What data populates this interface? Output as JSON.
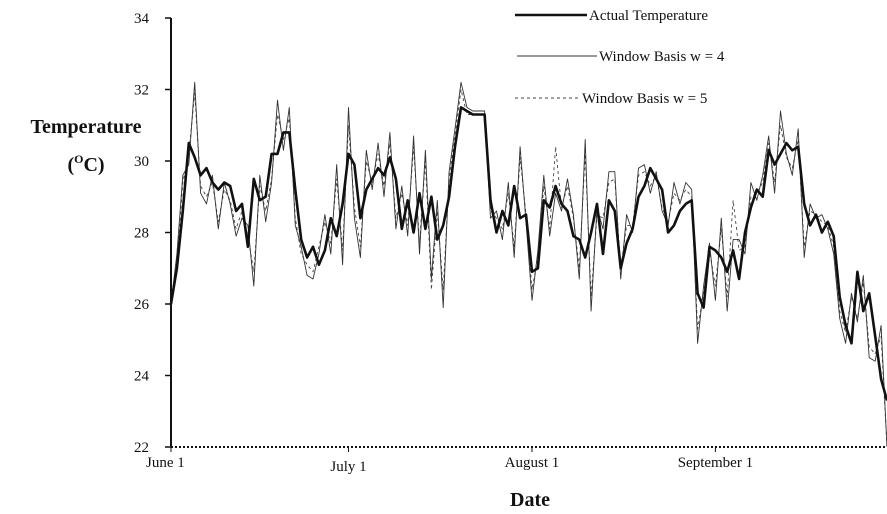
{
  "chart_data": {
    "type": "line",
    "title": "",
    "xlabel": "Date",
    "ylabel": "Temperature",
    "ylabel_unit": "(°C)",
    "ylim": [
      22,
      34
    ],
    "yticks": [
      22,
      24,
      26,
      28,
      30,
      32,
      34
    ],
    "x_range": [
      "2000-06-01",
      "2000-09-30"
    ],
    "x_tick_labels": [
      {
        "label": "June 1",
        "date": "2000-06-01"
      },
      {
        "label": "July 1",
        "date": "2000-07-01"
      },
      {
        "label": "August 1",
        "date": "2000-08-01"
      },
      {
        "label": "September 1",
        "date": "2000-09-01"
      }
    ],
    "legend_position": "top-right",
    "series": [
      {
        "name": "Actual Temperature",
        "color": "#111111",
        "style": "thick-solid",
        "x": [
          "2000-06-01",
          "2000-06-02",
          "2000-06-03",
          "2000-06-04",
          "2000-06-05",
          "2000-06-06",
          "2000-06-07",
          "2000-06-08",
          "2000-06-09",
          "2000-06-10",
          "2000-06-11",
          "2000-06-12",
          "2000-06-13",
          "2000-06-14",
          "2000-06-15",
          "2000-06-16",
          "2000-06-17",
          "2000-06-18",
          "2000-06-19",
          "2000-06-20",
          "2000-06-21",
          "2000-06-22",
          "2000-06-23",
          "2000-06-24",
          "2000-06-25",
          "2000-06-26",
          "2000-06-27",
          "2000-06-28",
          "2000-06-29",
          "2000-06-30",
          "2000-07-01",
          "2000-07-02",
          "2000-07-03",
          "2000-07-04",
          "2000-07-05",
          "2000-07-06",
          "2000-07-07",
          "2000-07-08",
          "2000-07-09",
          "2000-07-10",
          "2000-07-11",
          "2000-07-12",
          "2000-07-13",
          "2000-07-14",
          "2000-07-15",
          "2000-07-16",
          "2000-07-17",
          "2000-07-18",
          "2000-07-19",
          "2000-07-20",
          "2000-07-21",
          "2000-07-22",
          "2000-07-23",
          "2000-07-24",
          "2000-07-25",
          "2000-07-26",
          "2000-07-27",
          "2000-07-28",
          "2000-07-29",
          "2000-07-30",
          "2000-07-31",
          "2000-08-01",
          "2000-08-02",
          "2000-08-03",
          "2000-08-04",
          "2000-08-05",
          "2000-08-06",
          "2000-08-07",
          "2000-08-08",
          "2000-08-09",
          "2000-08-10",
          "2000-08-11",
          "2000-08-12",
          "2000-08-13",
          "2000-08-14",
          "2000-08-15",
          "2000-08-16",
          "2000-08-17",
          "2000-08-18",
          "2000-08-19",
          "2000-08-20",
          "2000-08-21",
          "2000-08-22",
          "2000-08-23",
          "2000-08-24",
          "2000-08-25",
          "2000-08-26",
          "2000-08-27",
          "2000-08-28",
          "2000-08-29",
          "2000-08-30",
          "2000-08-31",
          "2000-09-01",
          "2000-09-02",
          "2000-09-03",
          "2000-09-04",
          "2000-09-05",
          "2000-09-06",
          "2000-09-07",
          "2000-09-08",
          "2000-09-09",
          "2000-09-10",
          "2000-09-11",
          "2000-09-12",
          "2000-09-13",
          "2000-09-14",
          "2000-09-15",
          "2000-09-16",
          "2000-09-17",
          "2000-09-18",
          "2000-09-19",
          "2000-09-20",
          "2000-09-21",
          "2000-09-22",
          "2000-09-23",
          "2000-09-24",
          "2000-09-25",
          "2000-09-26",
          "2000-09-27",
          "2000-09-28",
          "2000-09-29",
          "2000-09-30"
        ],
        "values": [
          26.0,
          27.0,
          28.6,
          30.5,
          30.1,
          29.6,
          29.8,
          29.4,
          29.2,
          29.4,
          29.3,
          28.6,
          28.8,
          27.6,
          29.5,
          28.9,
          29.0,
          30.2,
          30.2,
          30.8,
          30.8,
          29.2,
          27.8,
          27.3,
          27.6,
          27.1,
          27.5,
          28.4,
          27.9,
          28.8,
          30.2,
          29.9,
          28.4,
          29.2,
          29.5,
          29.8,
          29.6,
          30.1,
          29.5,
          28.1,
          28.9,
          28.0,
          29.1,
          28.1,
          29.0,
          27.8,
          28.2,
          29.0,
          30.4,
          31.5,
          31.4,
          31.3,
          31.3,
          31.3,
          28.9,
          28.0,
          28.6,
          28.2,
          29.3,
          28.4,
          28.5,
          26.9,
          27.0,
          28.9,
          28.7,
          29.3,
          28.8,
          28.6,
          27.9,
          27.8,
          27.3,
          28.0,
          28.8,
          27.4,
          28.9,
          28.6,
          27.0,
          27.7,
          28.1,
          29.0,
          29.3,
          29.8,
          29.5,
          29.2,
          28.0,
          28.2,
          28.6,
          28.8,
          28.9,
          26.3,
          25.9,
          27.6,
          27.5,
          27.3,
          26.9,
          27.5,
          26.7,
          28.0,
          28.7,
          29.2,
          29.0,
          30.3,
          29.9,
          30.2,
          30.5,
          30.3,
          30.4,
          28.8,
          28.2,
          28.5,
          28.0,
          28.3,
          27.9,
          26.2,
          25.4,
          24.9,
          26.9,
          25.8,
          26.3,
          25.1,
          23.9,
          23.3
        ],
        "note": ""
      },
      {
        "name": "Window Basis w = 4",
        "color": "#333333",
        "style": "thin-solid",
        "values": [
          26.0,
          27.4,
          29.6,
          29.9,
          32.2,
          29.1,
          28.8,
          29.6,
          28.1,
          29.4,
          28.8,
          27.9,
          28.4,
          28.2,
          26.5,
          29.6,
          28.3,
          29.4,
          31.7,
          30.3,
          31.5,
          28.2,
          27.6,
          26.8,
          26.7,
          27.4,
          28.5,
          27.4,
          29.9,
          27.1,
          31.5,
          28.4,
          27.3,
          30.3,
          29.2,
          30.5,
          29.0,
          30.8,
          28.1,
          29.3,
          27.9,
          30.7,
          27.4,
          30.3,
          26.7,
          28.9,
          25.9,
          29.7,
          30.9,
          32.2,
          31.5,
          31.4,
          31.4,
          31.4,
          28.4,
          28.6,
          27.8,
          29.4,
          27.3,
          30.4,
          28.3,
          26.1,
          27.5,
          29.6,
          27.9,
          29.1,
          28.6,
          29.5,
          28.5,
          26.7,
          30.6,
          25.8,
          28.7,
          28.1,
          29.7,
          29.7,
          26.7,
          28.5,
          28.0,
          29.8,
          29.9,
          29.1,
          29.7,
          28.6,
          28.2,
          29.4,
          28.8,
          29.4,
          29.2,
          24.9,
          26.5,
          27.7,
          26.1,
          28.4,
          25.8,
          27.8,
          27.8,
          27.4,
          29.4,
          28.9,
          29.6,
          30.7,
          29.1,
          31.4,
          30.2,
          29.6,
          30.9,
          27.3,
          28.8,
          28.4,
          28.5,
          28.1,
          27.4,
          25.6,
          24.9,
          26.3,
          25.5,
          26.8,
          24.5,
          24.4,
          25.4,
          22.0
        ],
        "note": ""
      },
      {
        "name": "Window Basis w = 5",
        "color": "#444444",
        "style": "dashed",
        "values": [
          26.0,
          27.1,
          29.4,
          30.2,
          31.9,
          29.3,
          29.0,
          29.4,
          28.3,
          29.2,
          28.9,
          28.1,
          28.6,
          27.9,
          26.9,
          29.3,
          28.6,
          29.5,
          31.3,
          30.6,
          31.2,
          28.4,
          27.4,
          27.1,
          26.9,
          27.6,
          28.3,
          27.7,
          29.5,
          27.5,
          31.0,
          28.7,
          27.6,
          30.0,
          29.4,
          30.2,
          29.3,
          30.5,
          28.4,
          29.1,
          28.2,
          30.4,
          27.7,
          30.0,
          26.4,
          28.6,
          26.4,
          29.5,
          30.7,
          32.0,
          31.3,
          31.3,
          31.3,
          31.3,
          28.6,
          28.4,
          28.1,
          29.1,
          27.6,
          30.1,
          28.5,
          26.4,
          27.3,
          29.3,
          28.1,
          30.4,
          28.7,
          29.3,
          28.4,
          27.0,
          30.2,
          26.2,
          28.5,
          28.4,
          29.4,
          29.5,
          27.0,
          28.2,
          28.2,
          29.6,
          29.7,
          29.3,
          29.6,
          28.7,
          28.3,
          29.1,
          28.9,
          29.2,
          29.0,
          25.3,
          26.3,
          27.5,
          26.5,
          28.1,
          26.2,
          28.9,
          27.5,
          27.6,
          29.0,
          29.1,
          29.4,
          30.5,
          29.4,
          31.0,
          30.1,
          29.8,
          30.6,
          27.6,
          28.6,
          28.5,
          28.3,
          28.2,
          27.6,
          25.8,
          25.2,
          26.2,
          25.6,
          26.6,
          24.8,
          24.6,
          25.1,
          22.0
        ],
        "note": ""
      }
    ]
  }
}
